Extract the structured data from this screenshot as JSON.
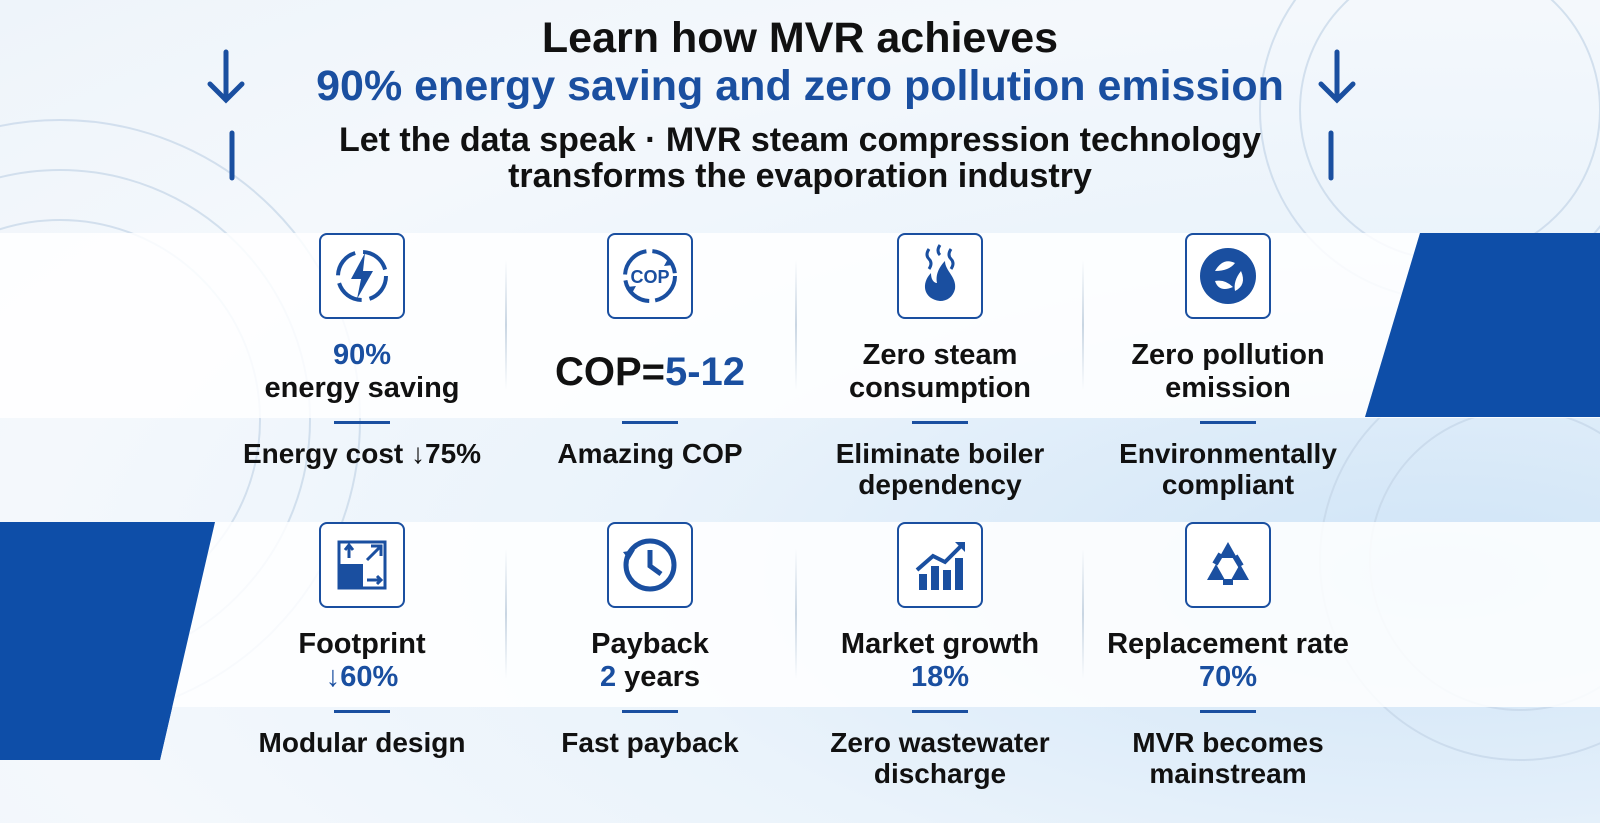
{
  "header": {
    "title": "Learn how MVR achieves",
    "subtitle": "90% energy saving and zero pollution emission",
    "tagline": [
      "Let the data speak · MVR steam compression technology",
      "transforms the evaporation industry"
    ]
  },
  "cards": [
    {
      "headline": [
        [
          {
            "text": "90%",
            "accent": true
          }
        ],
        [
          {
            "text": "energy saving"
          }
        ]
      ],
      "caption": [
        "Energy cost ↓75%"
      ]
    },
    {
      "icon_text": "COP",
      "headline": [
        [
          {
            "text": "COP="
          },
          {
            "text": "5-12",
            "accent": true
          }
        ]
      ],
      "size": "large",
      "caption": [
        "Amazing COP"
      ]
    },
    {
      "headline": [
        [
          {
            "text": "Zero steam"
          }
        ],
        [
          {
            "text": "consumption"
          }
        ]
      ],
      "caption": [
        "Eliminate boiler",
        "dependency"
      ]
    },
    {
      "headline": [
        [
          {
            "text": "Zero pollution"
          }
        ],
        [
          {
            "text": "emission"
          }
        ]
      ],
      "caption": [
        "Environmentally",
        "compliant"
      ]
    },
    {
      "headline": [
        [
          {
            "text": "Footprint"
          }
        ],
        [
          {
            "text": "↓60%",
            "accent": true
          }
        ]
      ],
      "caption": [
        "Modular design"
      ]
    },
    {
      "headline": [
        [
          {
            "text": "Payback"
          }
        ],
        [
          {
            "text": "2",
            "accent": true
          },
          {
            "text": " years"
          }
        ]
      ],
      "caption": [
        "Fast payback"
      ]
    },
    {
      "headline": [
        [
          {
            "text": "Market growth"
          }
        ],
        [
          {
            "text": "18%",
            "accent": true
          }
        ]
      ],
      "caption": [
        "Zero wastewater",
        "discharge"
      ]
    },
    {
      "headline": [
        [
          {
            "text": "Replacement rate"
          }
        ],
        [
          {
            "text": "70%",
            "accent": true
          }
        ]
      ],
      "caption": [
        "MVR becomes",
        "mainstream"
      ]
    }
  ]
}
